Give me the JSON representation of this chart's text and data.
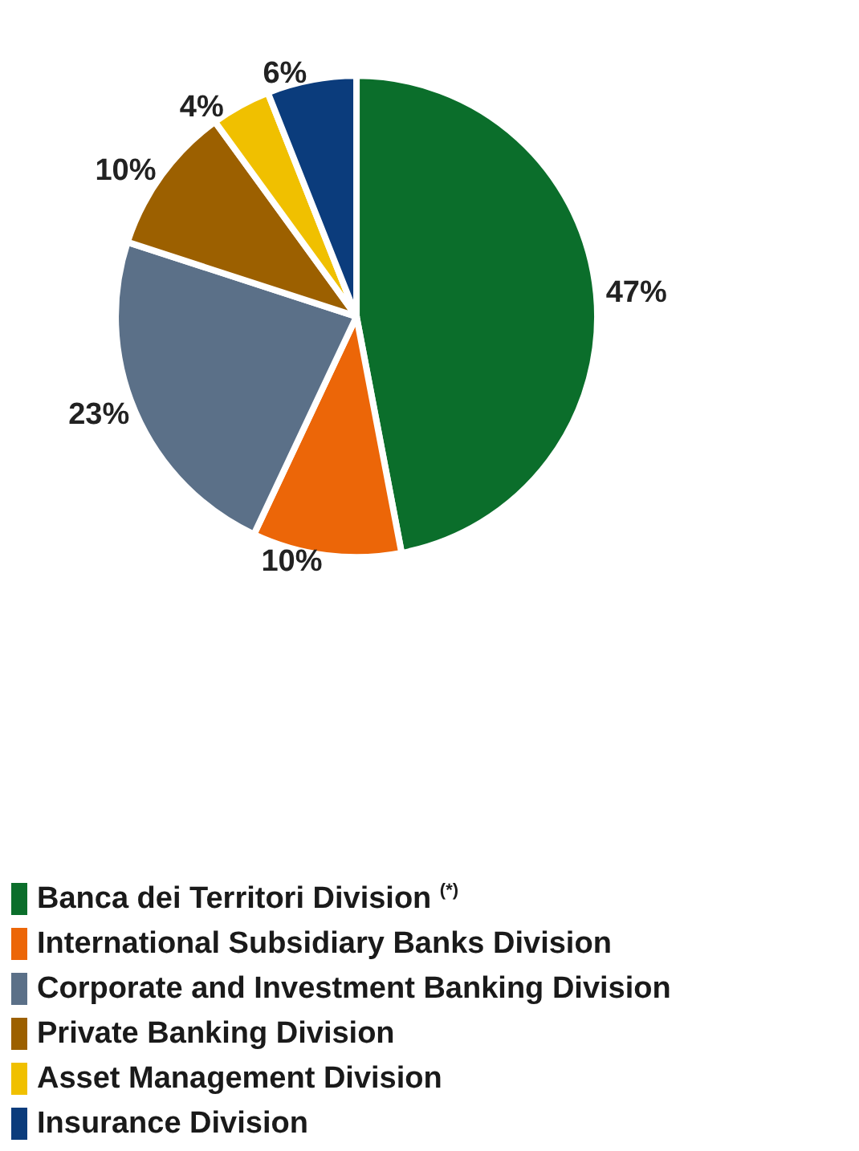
{
  "chart_data": {
    "type": "pie",
    "categories": [
      "Banca dei Territori Division $^{(*)}$",
      "International Subsidiary Banks Division",
      "Corporate and Investment Banking Division",
      "Private Banking Division",
      "Asset Management Division",
      "Insurance Division"
    ],
    "values": [
      47,
      10,
      23,
      10,
      4,
      6
    ],
    "value_labels": [
      "47%",
      "10%",
      "23%",
      "10%",
      "4%",
      "6%"
    ],
    "colors": [
      "#0b6e2b",
      "#ec6608",
      "#5b7088",
      "#9c6000",
      "#f0c000",
      "#0b3c7c"
    ],
    "legend": "bottom left"
  }
}
